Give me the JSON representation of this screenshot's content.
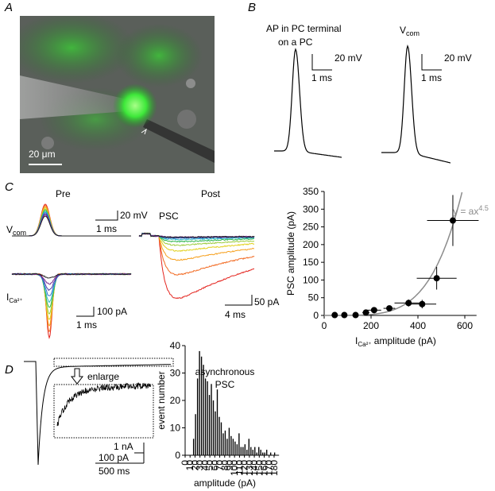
{
  "panels": {
    "a": {
      "label": "A",
      "scale_bar": "20 μm"
    },
    "b": {
      "label": "B",
      "title1": [
        "AP in PC terminal",
        "on a PC"
      ],
      "title2": {
        "main": "V",
        "sub": "com"
      },
      "scale_y": [
        "20 mV",
        "20 mV"
      ],
      "scale_x": [
        "1 ms",
        "1 ms"
      ]
    },
    "c": {
      "label": "C",
      "pre": "Pre",
      "post": "Post",
      "vcom": {
        "main": "V",
        "sub": "com"
      },
      "ica": {
        "main": "I",
        "sub": "Ca²⁺"
      },
      "psc": "PSC",
      "scale_vcom": [
        "20 mV",
        "1 ms"
      ],
      "scale_ica": [
        "100 pA",
        "1 ms"
      ],
      "scale_psc": [
        "50 pA",
        "4 ms"
      ]
    },
    "d": {
      "label": "D",
      "enlarge": "enlarge",
      "scale": [
        "1 nA",
        "100 pA",
        "500 ms"
      ]
    }
  },
  "chart_data": [
    {
      "type": "scatter",
      "y_label": "PSC amplitude (pA)",
      "x_label": {
        "main": "I",
        "sub": "Ca²⁺",
        "rest": " amplitude  (pA)"
      },
      "x": [
        45,
        86,
        134,
        178,
        213,
        278,
        360,
        418,
        480,
        549
      ],
      "values": [
        1,
        1,
        1,
        8,
        15,
        20,
        35,
        32,
        105,
        268
      ],
      "xerr": [
        0,
        0,
        0,
        15,
        30,
        25,
        60,
        60,
        85,
        110
      ],
      "yerr": [
        0,
        0,
        0,
        3,
        8,
        8,
        10,
        12,
        32,
        72
      ],
      "color": "#000000",
      "xlim": [
        0,
        650
      ],
      "ylim": [
        0,
        350
      ],
      "xticks": [
        0,
        200,
        400,
        600
      ],
      "yticks": [
        0,
        50,
        100,
        150,
        200,
        250,
        300,
        350
      ],
      "fit": {
        "label": "y = ax",
        "exponent_label": "4.5",
        "exponent": 4.5,
        "a": 1.2e-10,
        "color": "#8c8c8c"
      }
    },
    {
      "type": "histogram",
      "title": [
        "asynchronous",
        "PSC"
      ],
      "y_label": "event number",
      "x_label": "amplitude (pA)",
      "bins": [
        16,
        20,
        24,
        28,
        32,
        36,
        40,
        44,
        48,
        52,
        56,
        60,
        64,
        68,
        72,
        76,
        80,
        84,
        88,
        92,
        96,
        100,
        104,
        108,
        112,
        116,
        120,
        124,
        128,
        132,
        136,
        140,
        144,
        148,
        152,
        156,
        160,
        164,
        168,
        172,
        176,
        180,
        184
      ],
      "values": [
        6,
        15,
        28,
        38,
        36,
        33,
        28,
        27,
        22,
        26,
        20,
        16,
        24,
        14,
        12,
        8,
        9,
        6,
        10,
        7,
        6,
        5,
        4,
        8,
        3,
        3,
        4,
        2,
        6,
        3,
        2,
        3,
        1,
        3,
        2,
        1,
        1,
        2,
        0,
        1,
        0,
        1
      ],
      "color": "#000000",
      "xlim": [
        0,
        190
      ],
      "ylim": [
        0,
        40
      ],
      "xticks": [
        0,
        10,
        20,
        30,
        40,
        50,
        60,
        70,
        80,
        90,
        100,
        110,
        120,
        130,
        140,
        150,
        160,
        170,
        180
      ],
      "yticks": [
        0,
        10,
        20,
        30,
        40
      ]
    }
  ]
}
